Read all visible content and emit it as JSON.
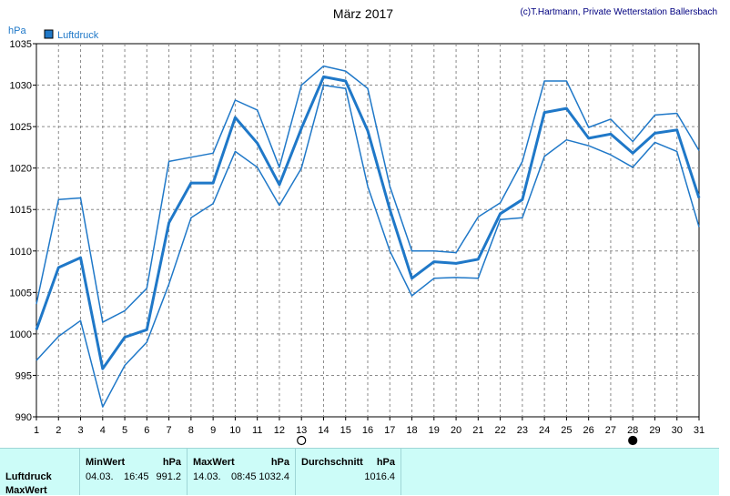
{
  "title": "März 2017",
  "credit": "(c)T.Hartmann, Private Wetterstation Ballersbach",
  "chart_data": {
    "type": "line",
    "ylabel": "hPa",
    "ylim": [
      990,
      1035
    ],
    "yticks": [
      990,
      995,
      1000,
      1005,
      1010,
      1015,
      1020,
      1025,
      1030,
      1035
    ],
    "x": [
      1,
      2,
      3,
      4,
      5,
      6,
      7,
      8,
      9,
      10,
      11,
      12,
      13,
      14,
      15,
      16,
      17,
      18,
      19,
      20,
      21,
      22,
      23,
      24,
      25,
      26,
      27,
      28,
      29,
      30,
      31
    ],
    "grid": true,
    "legend": {
      "placement": "top-left",
      "entries": [
        "Luftdruck"
      ]
    },
    "series": [
      {
        "name": "Luftdruck",
        "role": "mean",
        "values": [
          1000.5,
          1008.0,
          1009.2,
          995.8,
          999.6,
          1000.5,
          1013.4,
          1018.2,
          1018.2,
          1026.1,
          1023.0,
          1018.0,
          1024.8,
          1031.0,
          1030.5,
          1024.5,
          1015.0,
          1006.7,
          1008.7,
          1008.5,
          1009.0,
          1014.5,
          1016.2,
          1026.7,
          1027.2,
          1023.6,
          1024.1,
          1021.8,
          1024.2,
          1024.6,
          1016.4
        ]
      },
      {
        "role": "max",
        "values": [
          1003.6,
          1016.2,
          1016.4,
          1001.4,
          1002.8,
          1005.5,
          1020.8,
          1021.3,
          1021.8,
          1028.2,
          1027.0,
          1020.1,
          1030.0,
          1032.3,
          1031.7,
          1029.6,
          1017.8,
          1010.0,
          1010.0,
          1009.8,
          1014.1,
          1015.8,
          1020.8,
          1030.5,
          1030.5,
          1024.9,
          1025.9,
          1023.2,
          1026.4,
          1026.6,
          1022.1
        ]
      },
      {
        "role": "min",
        "values": [
          996.8,
          999.7,
          1001.6,
          991.2,
          996.2,
          999.0,
          1006.0,
          1014.0,
          1015.7,
          1022.0,
          1020.1,
          1015.5,
          1020.0,
          1030.0,
          1029.6,
          1017.8,
          1010.0,
          1004.6,
          1006.7,
          1006.8,
          1006.7,
          1013.8,
          1014.0,
          1021.4,
          1023.4,
          1022.7,
          1021.6,
          1020.1,
          1023.1,
          1022.0,
          1012.9
        ]
      }
    ],
    "markers": [
      {
        "day": 13,
        "kind": "open-circle"
      },
      {
        "day": 28,
        "kind": "filled-circle"
      }
    ],
    "line_color": "#1f78c8"
  },
  "stats": {
    "row_labels": [
      "Luftdruck",
      "MaxWert"
    ],
    "min_header": "MinWert",
    "max_header": "MaxWert",
    "avg_header": "Durchschnitt",
    "unit": "hPa",
    "min_date": "04.03.",
    "min_time": "16:45",
    "min_value": "991.2",
    "max_date": "14.03.",
    "max_time": "08:45",
    "max_value": "1032.4",
    "avg_value": "1016.4"
  }
}
